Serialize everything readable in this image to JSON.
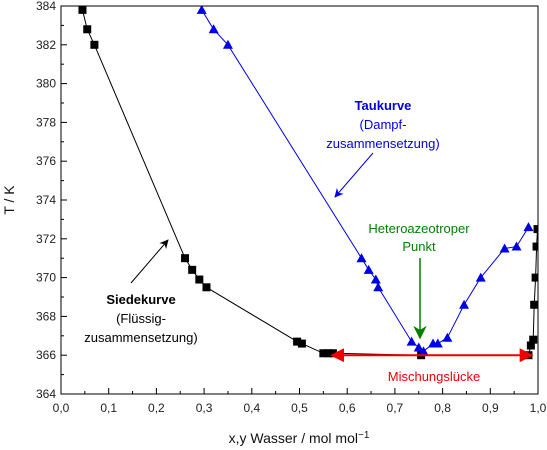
{
  "chart_data": {
    "type": "scatter",
    "xlabel": "x,y Wasser / mol mol",
    "xlabel_sup": "−1",
    "ylabel": "T / K",
    "xlim": [
      0.0,
      1.0
    ],
    "ylim": [
      364,
      384
    ],
    "x_ticks": [
      "0,0",
      "0,1",
      "0,2",
      "0,3",
      "0,4",
      "0,5",
      "0,6",
      "0,7",
      "0,8",
      "0,9",
      "1,0"
    ],
    "y_ticks": [
      "364",
      "366",
      "368",
      "370",
      "372",
      "374",
      "376",
      "378",
      "380",
      "382",
      "384"
    ],
    "grid": false,
    "colors": {
      "siede": "#000000",
      "tau": "#0000e6",
      "hetero": "#008000",
      "misch": "#ee0000"
    },
    "series": [
      {
        "marker": "square",
        "x": [
          0.045,
          0.055,
          0.07,
          0.26,
          0.275,
          0.29,
          0.305,
          0.495,
          0.505,
          0.55,
          0.56,
          0.57,
          0.755,
          0.98,
          0.985,
          0.99,
          0.992,
          0.995,
          0.997,
          0.999
        ],
        "y": [
          383.8,
          382.8,
          382.0,
          371.0,
          370.4,
          369.9,
          369.5,
          366.7,
          366.6,
          366.1,
          366.1,
          366.1,
          366.0,
          366.0,
          366.5,
          366.8,
          368.6,
          370.0,
          371.6,
          372.5
        ]
      },
      {
        "marker": "triangle",
        "x": [
          0.295,
          0.32,
          0.35,
          0.63,
          0.645,
          0.66,
          0.665,
          0.735,
          0.75,
          0.76,
          0.78,
          0.79,
          0.81,
          0.845,
          0.88,
          0.93,
          0.955,
          0.98
        ],
        "y": [
          383.8,
          382.8,
          382.0,
          371.0,
          370.4,
          369.9,
          369.5,
          366.7,
          366.4,
          366.2,
          366.6,
          366.6,
          366.9,
          368.6,
          370.0,
          371.5,
          371.6,
          372.6
        ]
      }
    ],
    "annotations": {
      "siede_title": "Siedekurve",
      "siede_sub1": "(Flüssig-",
      "siede_sub2": "zusammensetzung)",
      "tau_title": "Taukurve",
      "tau_sub1": "(Dampf-",
      "tau_sub2": "zusammensetzung)",
      "hetero_line1": "Heteroazeotroper",
      "hetero_line2": "Punkt",
      "misch": "Mischungslücke"
    },
    "misch_range": [
      0.57,
      0.985
    ],
    "misch_y": 366
  }
}
